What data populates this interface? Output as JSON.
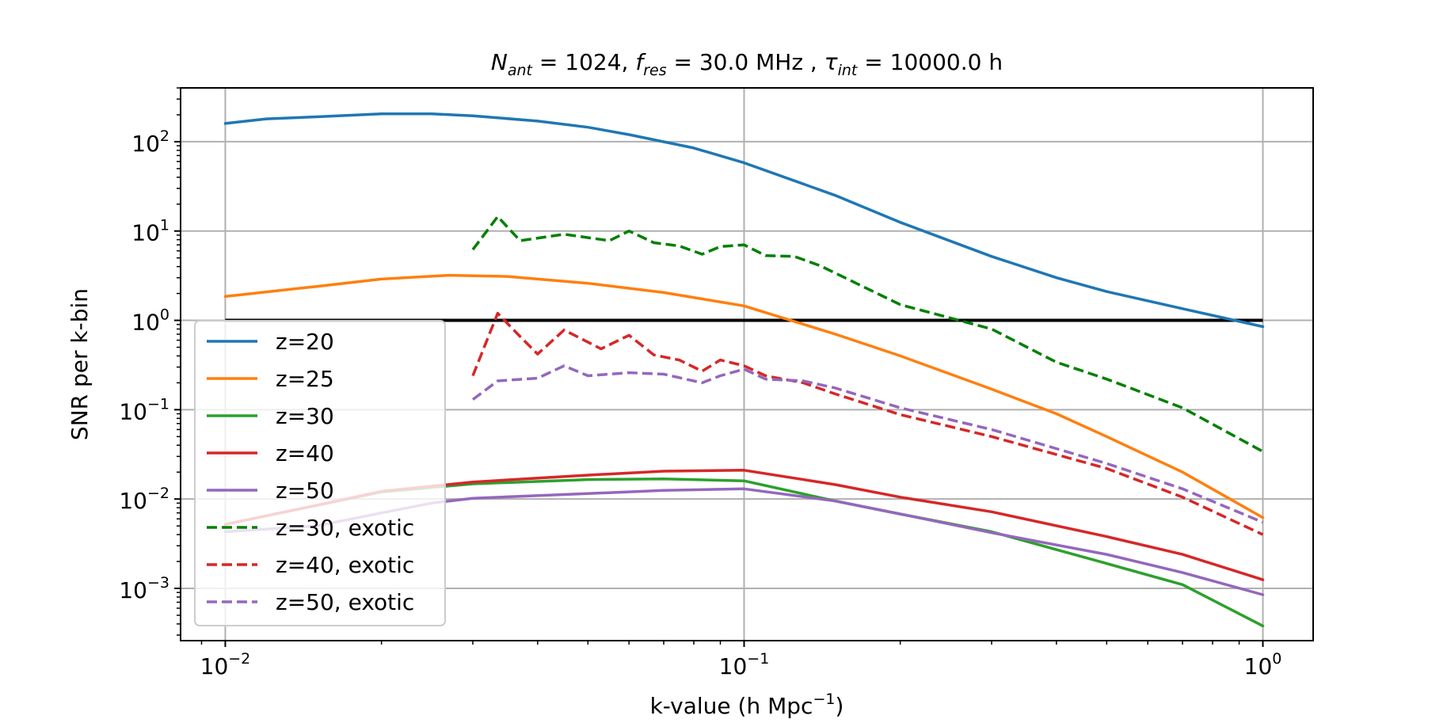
{
  "chart_data": {
    "type": "line",
    "title": {
      "n": "N",
      "n_sub": "ant",
      "n_val": " = 1024, ",
      "f": "f",
      "f_sub": "res",
      "f_val": " = 30.0 MHz , ",
      "tau": "τ",
      "tau_sub": "int",
      "tau_val": " = 10000.0 h"
    },
    "xlabel": {
      "main": "k-value (h Mpc",
      "sup": "−1",
      "end": ")"
    },
    "ylabel": "SNR per k-bin",
    "x_scale": "log",
    "y_scale": "log",
    "xlim": [
      0.0082,
      1.25
    ],
    "ylim": [
      0.00026,
      400
    ],
    "x_ticks": [
      {
        "value": 0.01,
        "base": "10",
        "exp": "−2"
      },
      {
        "value": 0.1,
        "base": "10",
        "exp": "−1"
      },
      {
        "value": 1,
        "base": "10",
        "exp": "0"
      }
    ],
    "y_ticks": [
      {
        "value": 0.001,
        "base": "10",
        "exp": "−3"
      },
      {
        "value": 0.01,
        "base": "10",
        "exp": "−2"
      },
      {
        "value": 0.1,
        "base": "10",
        "exp": "−1"
      },
      {
        "value": 1,
        "base": "10",
        "exp": "0"
      },
      {
        "value": 10,
        "base": "10",
        "exp": "1"
      },
      {
        "value": 100,
        "base": "10",
        "exp": "2"
      }
    ],
    "grid": true,
    "legend_position": "bottom-left",
    "reference_line": {
      "y": 1,
      "color": "#000000"
    },
    "series": [
      {
        "name": "z=20",
        "color": "#1f77b4",
        "style": "solid",
        "points": [
          [
            0.01,
            160
          ],
          [
            0.012,
            180
          ],
          [
            0.015,
            190
          ],
          [
            0.02,
            205
          ],
          [
            0.025,
            205
          ],
          [
            0.03,
            195
          ],
          [
            0.04,
            170
          ],
          [
            0.05,
            145
          ],
          [
            0.06,
            120
          ],
          [
            0.08,
            85
          ],
          [
            0.1,
            58
          ],
          [
            0.15,
            25
          ],
          [
            0.2,
            12.5
          ],
          [
            0.3,
            5.2
          ],
          [
            0.4,
            3.0
          ],
          [
            0.5,
            2.1
          ],
          [
            0.7,
            1.35
          ],
          [
            1.0,
            0.85
          ]
        ]
      },
      {
        "name": "z=25",
        "color": "#ff7f0e",
        "style": "solid",
        "points": [
          [
            0.01,
            1.85
          ],
          [
            0.015,
            2.4
          ],
          [
            0.02,
            2.9
          ],
          [
            0.027,
            3.2
          ],
          [
            0.035,
            3.1
          ],
          [
            0.05,
            2.6
          ],
          [
            0.07,
            2.05
          ],
          [
            0.1,
            1.45
          ],
          [
            0.15,
            0.7
          ],
          [
            0.2,
            0.4
          ],
          [
            0.3,
            0.17
          ],
          [
            0.4,
            0.09
          ],
          [
            0.5,
            0.05
          ],
          [
            0.7,
            0.02
          ],
          [
            1.0,
            0.0062
          ]
        ]
      },
      {
        "name": "z=30",
        "color": "#2ca02c",
        "style": "solid",
        "points": [
          [
            0.01,
            0.0052
          ],
          [
            0.015,
            0.0085
          ],
          [
            0.02,
            0.012
          ],
          [
            0.03,
            0.0148
          ],
          [
            0.05,
            0.0165
          ],
          [
            0.07,
            0.0168
          ],
          [
            0.1,
            0.016
          ],
          [
            0.15,
            0.0095
          ],
          [
            0.2,
            0.0068
          ],
          [
            0.3,
            0.0043
          ],
          [
            0.5,
            0.0019
          ],
          [
            0.7,
            0.0011
          ],
          [
            1.0,
            0.00038
          ]
        ]
      },
      {
        "name": "z=40",
        "color": "#d62728",
        "style": "solid",
        "points": [
          [
            0.01,
            0.0052
          ],
          [
            0.015,
            0.0085
          ],
          [
            0.02,
            0.0122
          ],
          [
            0.03,
            0.0155
          ],
          [
            0.05,
            0.0185
          ],
          [
            0.07,
            0.0205
          ],
          [
            0.1,
            0.021
          ],
          [
            0.15,
            0.0145
          ],
          [
            0.2,
            0.0105
          ],
          [
            0.3,
            0.0072
          ],
          [
            0.5,
            0.0038
          ],
          [
            0.7,
            0.0024
          ],
          [
            1.0,
            0.00125
          ]
        ]
      },
      {
        "name": "z=50",
        "color": "#9467bd",
        "style": "solid",
        "points": [
          [
            0.01,
            0.0043
          ],
          [
            0.015,
            0.005
          ],
          [
            0.02,
            0.007
          ],
          [
            0.025,
            0.009
          ],
          [
            0.03,
            0.0102
          ],
          [
            0.05,
            0.0115
          ],
          [
            0.07,
            0.0125
          ],
          [
            0.1,
            0.013
          ],
          [
            0.15,
            0.0095
          ],
          [
            0.2,
            0.0068
          ],
          [
            0.3,
            0.0042
          ],
          [
            0.5,
            0.0024
          ],
          [
            0.7,
            0.0015
          ],
          [
            1.0,
            0.00085
          ]
        ]
      },
      {
        "name": "z=30, exotic",
        "color": "#008000",
        "style": "dashed",
        "points": [
          [
            0.03,
            6.2
          ],
          [
            0.0335,
            14.5
          ],
          [
            0.037,
            7.8
          ],
          [
            0.045,
            9.2
          ],
          [
            0.055,
            7.8
          ],
          [
            0.06,
            10
          ],
          [
            0.067,
            7.4
          ],
          [
            0.075,
            6.8
          ],
          [
            0.083,
            5.5
          ],
          [
            0.09,
            6.7
          ],
          [
            0.1,
            7.0
          ],
          [
            0.11,
            5.3
          ],
          [
            0.125,
            5.2
          ],
          [
            0.14,
            4.1
          ],
          [
            0.2,
            1.5
          ],
          [
            0.3,
            0.8
          ],
          [
            0.4,
            0.34
          ],
          [
            0.5,
            0.22
          ],
          [
            0.7,
            0.105
          ],
          [
            1.0,
            0.034
          ]
        ]
      },
      {
        "name": "z=40, exotic",
        "color": "#d62728",
        "style": "dashed",
        "points": [
          [
            0.03,
            0.24
          ],
          [
            0.0335,
            1.2
          ],
          [
            0.037,
            0.66
          ],
          [
            0.04,
            0.42
          ],
          [
            0.045,
            0.78
          ],
          [
            0.053,
            0.48
          ],
          [
            0.06,
            0.68
          ],
          [
            0.067,
            0.41
          ],
          [
            0.075,
            0.36
          ],
          [
            0.083,
            0.27
          ],
          [
            0.09,
            0.36
          ],
          [
            0.1,
            0.31
          ],
          [
            0.11,
            0.24
          ],
          [
            0.13,
            0.2
          ],
          [
            0.15,
            0.15
          ],
          [
            0.2,
            0.088
          ],
          [
            0.3,
            0.05
          ],
          [
            0.5,
            0.022
          ],
          [
            0.7,
            0.0105
          ],
          [
            1.0,
            0.004
          ]
        ]
      },
      {
        "name": "z=50, exotic",
        "color": "#9467bd",
        "style": "dashed",
        "points": [
          [
            0.03,
            0.13
          ],
          [
            0.0335,
            0.21
          ],
          [
            0.04,
            0.225
          ],
          [
            0.045,
            0.31
          ],
          [
            0.05,
            0.24
          ],
          [
            0.06,
            0.26
          ],
          [
            0.07,
            0.25
          ],
          [
            0.083,
            0.2
          ],
          [
            0.09,
            0.24
          ],
          [
            0.1,
            0.285
          ],
          [
            0.11,
            0.22
          ],
          [
            0.13,
            0.21
          ],
          [
            0.15,
            0.175
          ],
          [
            0.2,
            0.105
          ],
          [
            0.3,
            0.06
          ],
          [
            0.5,
            0.025
          ],
          [
            0.7,
            0.013
          ],
          [
            1.0,
            0.0055
          ]
        ]
      }
    ]
  }
}
